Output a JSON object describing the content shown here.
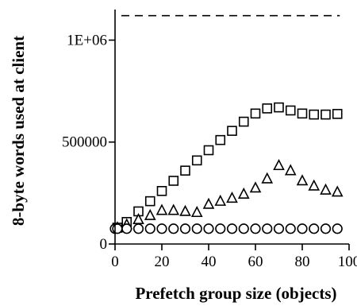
{
  "chart_data": {
    "type": "scatter",
    "title": "",
    "xlabel": "Prefetch group size (objects)",
    "ylabel": "8-byte words used at client",
    "xlim": [
      0,
      100
    ],
    "ylim": [
      0,
      1150000
    ],
    "x_ticks": [
      0,
      20,
      40,
      60,
      80,
      100
    ],
    "x_tick_labels": [
      "0",
      "20",
      "40",
      "60",
      "80",
      "100"
    ],
    "y_ticks": [
      0,
      500000,
      1000000
    ],
    "y_tick_labels": [
      "0",
      "500000",
      "1E+06"
    ],
    "grid": false,
    "legend": "none",
    "reference_line": {
      "y": 1120000,
      "x_from": 0,
      "x_to": 95,
      "style": "dashed"
    },
    "series": [
      {
        "marker": "square",
        "x": [
          1,
          5,
          10,
          15,
          20,
          25,
          30,
          35,
          40,
          45,
          50,
          55,
          60,
          65,
          70,
          75,
          80,
          85,
          90,
          95
        ],
        "values": [
          80000,
          108000,
          160000,
          210000,
          260000,
          310000,
          360000,
          410000,
          460000,
          510000,
          555000,
          600000,
          640000,
          665000,
          670000,
          655000,
          640000,
          635000,
          635000,
          638000
        ]
      },
      {
        "marker": "triangle",
        "x": [
          1,
          5,
          10,
          15,
          20,
          25,
          30,
          35,
          40,
          45,
          50,
          55,
          60,
          65,
          70,
          75,
          80,
          85,
          90,
          95
        ],
        "values": [
          80000,
          95000,
          120000,
          140000,
          165000,
          165000,
          160000,
          155000,
          195000,
          210000,
          225000,
          245000,
          275000,
          320000,
          385000,
          360000,
          310000,
          285000,
          265000,
          255000
        ]
      },
      {
        "marker": "circle",
        "x": [
          0,
          1,
          5,
          10,
          15,
          20,
          25,
          30,
          35,
          40,
          45,
          50,
          55,
          60,
          65,
          70,
          75,
          80,
          85,
          90,
          95
        ],
        "values": [
          75000,
          75000,
          75000,
          75000,
          75000,
          75000,
          75000,
          75000,
          75000,
          75000,
          75000,
          75000,
          75000,
          75000,
          75000,
          75000,
          75000,
          75000,
          75000,
          75000,
          75000
        ]
      }
    ]
  }
}
